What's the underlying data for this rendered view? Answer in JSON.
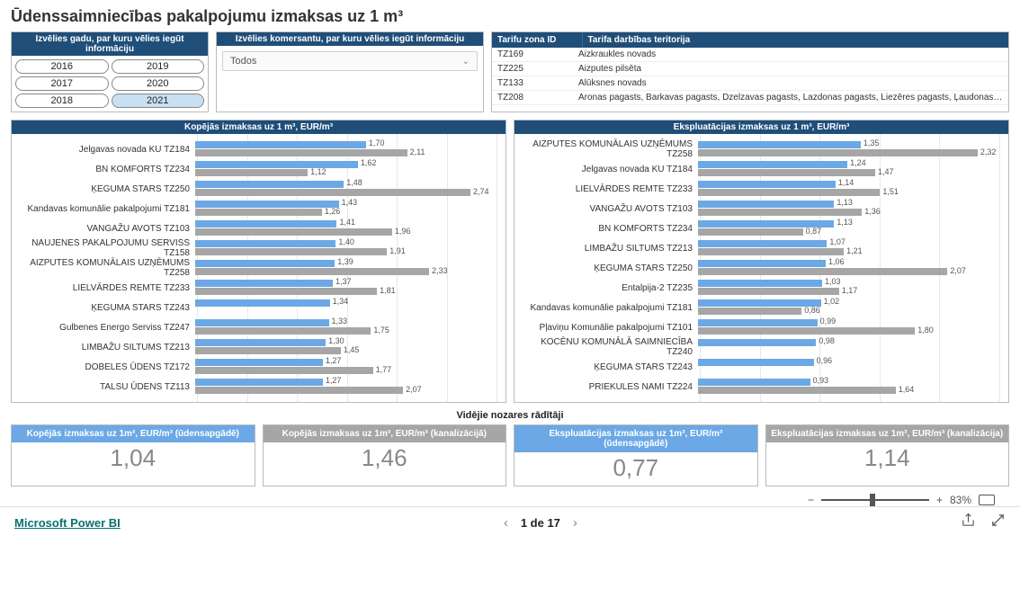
{
  "title": "Ūdenssaimniecības pakalpojumu izmaksas uz 1 m³",
  "year_picker": {
    "header": "Izvēlies gadu, par kuru vēlies iegūt informāciju",
    "years": [
      "2016",
      "2019",
      "2017",
      "2020",
      "2018",
      "2021"
    ],
    "selected": "2021"
  },
  "merchant_picker": {
    "header": "Izvēlies komersantu, par kuru vēlies iegūt informāciju",
    "selected": "Todos"
  },
  "tariff_table": {
    "columns": [
      "Tarifu zona ID",
      "Tarifa darbības teritorija"
    ],
    "rows": [
      [
        "TZ169",
        "Aizkraukles novads"
      ],
      [
        "TZ225",
        "Aizputes pilsēta"
      ],
      [
        "TZ133",
        "Alūksnes novads"
      ],
      [
        "TZ208",
        "Aronas pagasts, Barkavas pagasts, Dzelzavas pagasts, Lazdonas pagasts, Liezēres pagasts, Ļaudonas pagasts, Mārcienas pagasts…"
      ]
    ]
  },
  "chart_left": {
    "title": "Kopējās izmaksas uz 1 m³, EUR/m³",
    "type": "grouped-horizontal-bar",
    "xmax": 3.0,
    "bar_color_a": "#6ba8e5",
    "bar_color_b": "#a6a6a6",
    "grid_color": "#e8e8e8",
    "label_fontsize": 10,
    "value_fontsize": 9,
    "rows": [
      {
        "label": "Jelgavas novada KU TZ184",
        "a": 1.7,
        "b": 2.11
      },
      {
        "label": "BN KOMFORTS TZ234",
        "a": 1.62,
        "b": 1.12
      },
      {
        "label": "ĶEGUMA STARS TZ250",
        "a": 1.48,
        "b": 2.74
      },
      {
        "label": "Kandavas komunālie pakalpojumi TZ181",
        "a": 1.43,
        "b": 1.26
      },
      {
        "label": "VANGAŽU AVOTS TZ103",
        "a": 1.41,
        "b": 1.96
      },
      {
        "label": "NAUJENES PAKALPOJUMU SERVISS TZ158",
        "a": 1.4,
        "b": 1.91
      },
      {
        "label": "AIZPUTES KOMUNĀLAIS UZŅĒMUMS TZ258",
        "a": 1.39,
        "b": 2.33
      },
      {
        "label": "LIELVĀRDES REMTE TZ233",
        "a": 1.37,
        "b": 1.81
      },
      {
        "label": "ĶEGUMA STARS TZ243",
        "a": 1.34,
        "b": null
      },
      {
        "label": "Gulbenes Energo Serviss TZ247",
        "a": 1.33,
        "b": 1.75
      },
      {
        "label": "LIMBAŽU SILTUMS TZ213",
        "a": 1.3,
        "b": 1.45
      },
      {
        "label": "DOBELES ŪDENS TZ172",
        "a": 1.27,
        "b": 1.77
      },
      {
        "label": "TALSU ŪDENS TZ113",
        "a": 1.27,
        "b": 2.07
      }
    ]
  },
  "chart_right": {
    "title": "Ekspluatācijas izmaksas uz 1 m³, EUR/m³",
    "type": "grouped-horizontal-bar",
    "xmax": 2.5,
    "bar_color_a": "#6ba8e5",
    "bar_color_b": "#a6a6a6",
    "grid_color": "#e8e8e8",
    "label_fontsize": 10,
    "value_fontsize": 9,
    "rows": [
      {
        "label": "AIZPUTES KOMUNĀLAIS UZŅĒMUMS TZ258",
        "a": 1.35,
        "b": 2.32
      },
      {
        "label": "Jelgavas novada KU TZ184",
        "a": 1.24,
        "b": 1.47
      },
      {
        "label": "LIELVĀRDES REMTE TZ233",
        "a": 1.14,
        "b": 1.51
      },
      {
        "label": "VANGAŽU AVOTS TZ103",
        "a": 1.13,
        "b": 1.36
      },
      {
        "label": "BN KOMFORTS TZ234",
        "a": 1.13,
        "b": 0.87
      },
      {
        "label": "LIMBAŽU SILTUMS TZ213",
        "a": 1.07,
        "b": 1.21
      },
      {
        "label": "ĶEGUMA STARS TZ250",
        "a": 1.06,
        "b": 2.07
      },
      {
        "label": "Entalpija-2 TZ235",
        "a": 1.03,
        "b": 1.17
      },
      {
        "label": "Kandavas komunālie pakalpojumi TZ181",
        "a": 1.02,
        "b": 0.86
      },
      {
        "label": "Pļaviņu Komunālie pakalpojumi TZ101",
        "a": 0.99,
        "b": 1.8
      },
      {
        "label": "KOCĒNU KOMUNĀLĀ SAIMNIECĪBA TZ240",
        "a": 0.98,
        "b": null
      },
      {
        "label": "ĶEGUMA STARS TZ243",
        "a": 0.96,
        "b": null
      },
      {
        "label": "PRIEKULES NAMI TZ224",
        "a": 0.93,
        "b": 1.64
      }
    ]
  },
  "avg_header": "Vidējie nozares rādītāji",
  "cards": [
    {
      "header": "Kopējās izmaksas uz 1m³, EUR/m³ (ūdensapgādē)",
      "value": "1,04",
      "color": "blue"
    },
    {
      "header": "Kopējās izmaksas uz 1m³, EUR/m³ (kanalizācijā)",
      "value": "1,46",
      "color": "grey"
    },
    {
      "header": "Ekspluatācijas izmaksas uz 1m³, EUR/m³ (ūdensapgādē)",
      "value": "0,77",
      "color": "blue"
    },
    {
      "header": "Ekspluatācijas izmaksas uz 1m³, EUR/m³ (kanalizācija)",
      "value": "1,14",
      "color": "grey"
    }
  ],
  "zoom": {
    "percent": "83%",
    "slider_pos": 0.45
  },
  "footer": {
    "brand": "Microsoft Power BI",
    "pager": "1 de 17"
  }
}
